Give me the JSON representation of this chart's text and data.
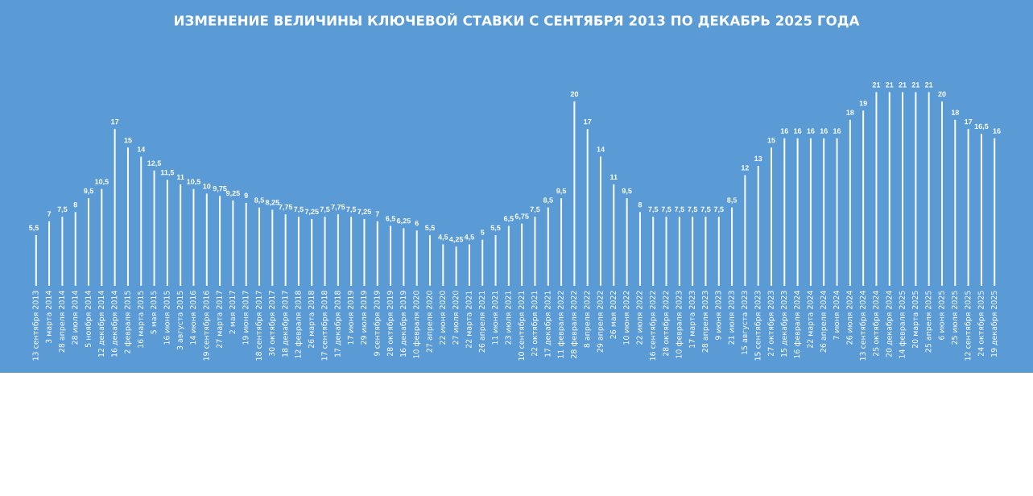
{
  "chart_data": {
    "type": "bar",
    "title": "ИЗМЕНЕНИЕ ВЕЛИЧИНЫ КЛЮЧЕВОЙ СТАВКИ С СЕНТЯБРЯ 2013 ПО ДЕКАБРЬ 2025 ГОДА",
    "categories": [
      "13 сентября 2013",
      "3 марта 2014",
      "28 апреля 2014",
      "28 июля 2014",
      "5 ноября 2014",
      "12 декабря 2014",
      "16 декабря 2014",
      "2 февраля 2015",
      "16 марта 2015",
      "5 мая 2015",
      "16 июня 2015",
      "3 августа 2015",
      "14 июня 2016",
      "19 сентября 2016",
      "27 марта 2017",
      "2 мая 2017",
      "19 июня 2017",
      "18 сентября 2017",
      "30 октября 2017",
      "18 декабря 2017",
      "12 февраля 2018",
      "26 марта 2018",
      "17 сентября 2018",
      "17 декабря 2018",
      "17 июня 2019",
      "29 июля 2019",
      "9 сентября 2019",
      "28 октября 2019",
      "16 декабря 2019",
      "10 февраля 2020",
      "27 апреля 2020",
      "22 июня 2020",
      "27 июля 2020",
      "22 марта 2021",
      "26 апреля 2021",
      "11 июня 2021",
      "23 июля 2021",
      "10 сентября 2021",
      "22 октября 2021",
      "17 декабря 2021",
      "11 февраля 2022",
      "28 февраля 2022",
      "8 апреля 2022",
      "29 апреля 2022",
      "26 мая 2022",
      "10 июня 2022",
      "22 июля 2022",
      "16 сентября 2022",
      "28 октября 2022",
      "10 февраля 2023",
      "17 марта 2023",
      "28 апреля 2023",
      "9 июня 2023",
      "21 июля 2023",
      "15 августа 2023",
      "15 сентября 2023",
      "27 октября 2023",
      "15 декабря 2023",
      "16 февраля 2024",
      "22 марта 2024",
      "26 апреля 2024",
      "7 июня 2024",
      "26 июля 2024",
      "13 сентября 2024",
      "25 октября 2024",
      "20 декабря 2024",
      "14 февраля 2025",
      "20 марта 2025",
      "25 апреля 2025",
      "6 июня 2025",
      "25 июля 2025",
      "12 сентября 2025",
      "24 октября 2025",
      "19 декабря 2025"
    ],
    "values": [
      5.5,
      7,
      7.5,
      8,
      9.5,
      10.5,
      17,
      15,
      14,
      12.5,
      11.5,
      11,
      10.5,
      10,
      9.75,
      9.25,
      9,
      8.5,
      8.25,
      7.75,
      7.5,
      7.25,
      7.5,
      7.75,
      7.5,
      7.25,
      7,
      6.5,
      6.25,
      6,
      5.5,
      4.5,
      4.25,
      4.5,
      5,
      5.5,
      6.5,
      6.75,
      7.5,
      8.5,
      9.5,
      20,
      17,
      14,
      11,
      9.5,
      8,
      7.5,
      7.5,
      7.5,
      7.5,
      7.5,
      7.5,
      8.5,
      12,
      13,
      15,
      16,
      16,
      16,
      16,
      16,
      18,
      19,
      21,
      21,
      21,
      21,
      21,
      20,
      18,
      17,
      16.5,
      16
    ],
    "value_labels": [
      "5,5",
      "7",
      "7,5",
      "8",
      "9,5",
      "10,5",
      "17",
      "15",
      "14",
      "12,5",
      "11,5",
      "11",
      "10,5",
      "10",
      "9,75",
      "9,25",
      "9",
      "8,5",
      "8,25",
      "7,75",
      "7,5",
      "7,25",
      "7,5",
      "7,75",
      "7,5",
      "7,25",
      "7",
      "6,5",
      "6,25",
      "6",
      "5,5",
      "4,5",
      "4,25",
      "4,5",
      "5",
      "5,5",
      "6,5",
      "6,75",
      "7,5",
      "8,5",
      "9,5",
      "20",
      "17",
      "14",
      "11",
      "9,5",
      "8",
      "7,5",
      "7,5",
      "7,5",
      "7,5",
      "7,5",
      "7,5",
      "8,5",
      "12",
      "13",
      "15",
      "16",
      "16",
      "16",
      "16",
      "16",
      "18",
      "19",
      "21",
      "21",
      "21",
      "21",
      "21",
      "20",
      "18",
      "17",
      "16,5",
      "16"
    ],
    "color": "#ffffff"
  }
}
